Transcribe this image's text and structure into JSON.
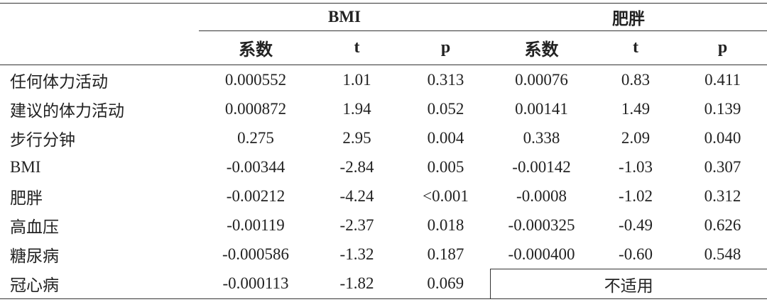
{
  "table": {
    "groups": [
      "BMI",
      "肥胖"
    ],
    "columns": [
      "系数",
      "t",
      "p",
      "系数",
      "t",
      "p"
    ],
    "rows": [
      [
        "任何体力活动",
        "0.000552",
        "1.01",
        "0.313",
        "0.00076",
        "0.83",
        "0.411"
      ],
      [
        "建议的体力活动",
        "0.000872",
        "1.94",
        "0.052",
        "0.00141",
        "1.49",
        "0.139"
      ],
      [
        "步行分钟",
        "0.275",
        "2.95",
        "0.004",
        "0.338",
        "2.09",
        "0.040"
      ],
      [
        "BMI",
        "-0.00344",
        "-2.84",
        "0.005",
        "-0.00142",
        "-1.03",
        "0.307"
      ],
      [
        "肥胖",
        "-0.00212",
        "-4.24",
        "<0.001",
        "-0.0008",
        "-1.02",
        "0.312"
      ],
      [
        "高血压",
        "-0.00119",
        "-2.37",
        "0.018",
        "-0.000325",
        "-0.49",
        "0.626"
      ],
      [
        "糖尿病",
        "-0.000586",
        "-1.32",
        "0.187",
        "-0.000400",
        "-0.60",
        "0.548"
      ],
      [
        "冠心病",
        "-0.000113",
        "-1.82",
        "0.069"
      ]
    ],
    "not_applicable": "不适用"
  }
}
